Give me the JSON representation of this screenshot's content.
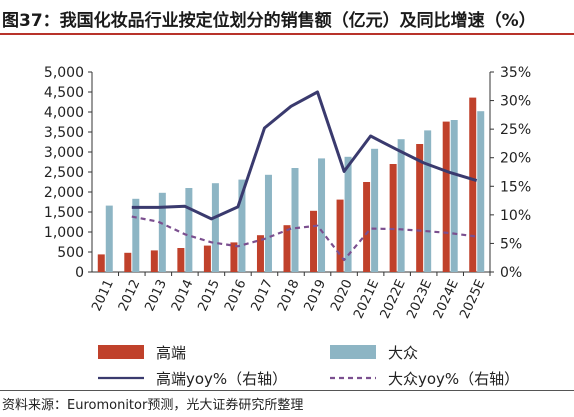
{
  "figure": {
    "title": "图37：我国化妆品行业按定位划分的销售额（亿元）及同比增速（%）",
    "source": "资料来源：Euromonitor预测，光大证券研究所整理"
  },
  "chart_data": {
    "type": "bar",
    "title": "图37：我国化妆品行业按定位划分的销售额（亿元）及同比增速（%）",
    "xlabel": "",
    "ylabel": "",
    "y2label": "",
    "categories": [
      "2011",
      "2012",
      "2013",
      "2014",
      "2015",
      "2016",
      "2017",
      "2018",
      "2019",
      "2020",
      "2021E",
      "2022E",
      "2023E",
      "2024E",
      "2025E"
    ],
    "ylim": [
      0,
      5000
    ],
    "yticks": [
      "0",
      "500",
      "1,000",
      "1,500",
      "2,000",
      "2,500",
      "3,000",
      "3,500",
      "4,000",
      "4,500",
      "5,000"
    ],
    "y2lim": [
      0,
      35
    ],
    "y2ticks": [
      "0%",
      "5%",
      "10%",
      "15%",
      "20%",
      "25%",
      "30%",
      "35%"
    ],
    "grid": false,
    "legend_position": "bottom",
    "series": [
      {
        "name": "高端",
        "type": "bar",
        "axis": "left",
        "color": "#c0412b",
        "values": [
          440,
          480,
          540,
          600,
          660,
          740,
          920,
          1170,
          1530,
          1810,
          2250,
          2700,
          3200,
          3760,
          4360
        ]
      },
      {
        "name": "大众",
        "type": "bar",
        "axis": "left",
        "color": "#8db5c4",
        "values": [
          1660,
          1830,
          1980,
          2100,
          2220,
          2310,
          2430,
          2600,
          2840,
          2880,
          3080,
          3320,
          3540,
          3800,
          4020
        ]
      },
      {
        "name": "高端yoy%（右轴）",
        "type": "line",
        "axis": "right",
        "color": "#3a3a6e",
        "dash": "solid",
        "values": [
          null,
          11.3,
          11.3,
          11.5,
          9.3,
          11.4,
          25.2,
          29.0,
          31.5,
          17.6,
          23.8,
          21.4,
          19.1,
          17.4,
          16.0
        ]
      },
      {
        "name": "大众yoy%（右轴）",
        "type": "line",
        "axis": "right",
        "color": "#7b4f8f",
        "dash": "dashed",
        "values": [
          null,
          9.7,
          8.8,
          6.6,
          5.2,
          4.5,
          5.8,
          7.6,
          8.1,
          2.1,
          7.6,
          7.5,
          7.2,
          6.8,
          6.2
        ]
      }
    ]
  }
}
